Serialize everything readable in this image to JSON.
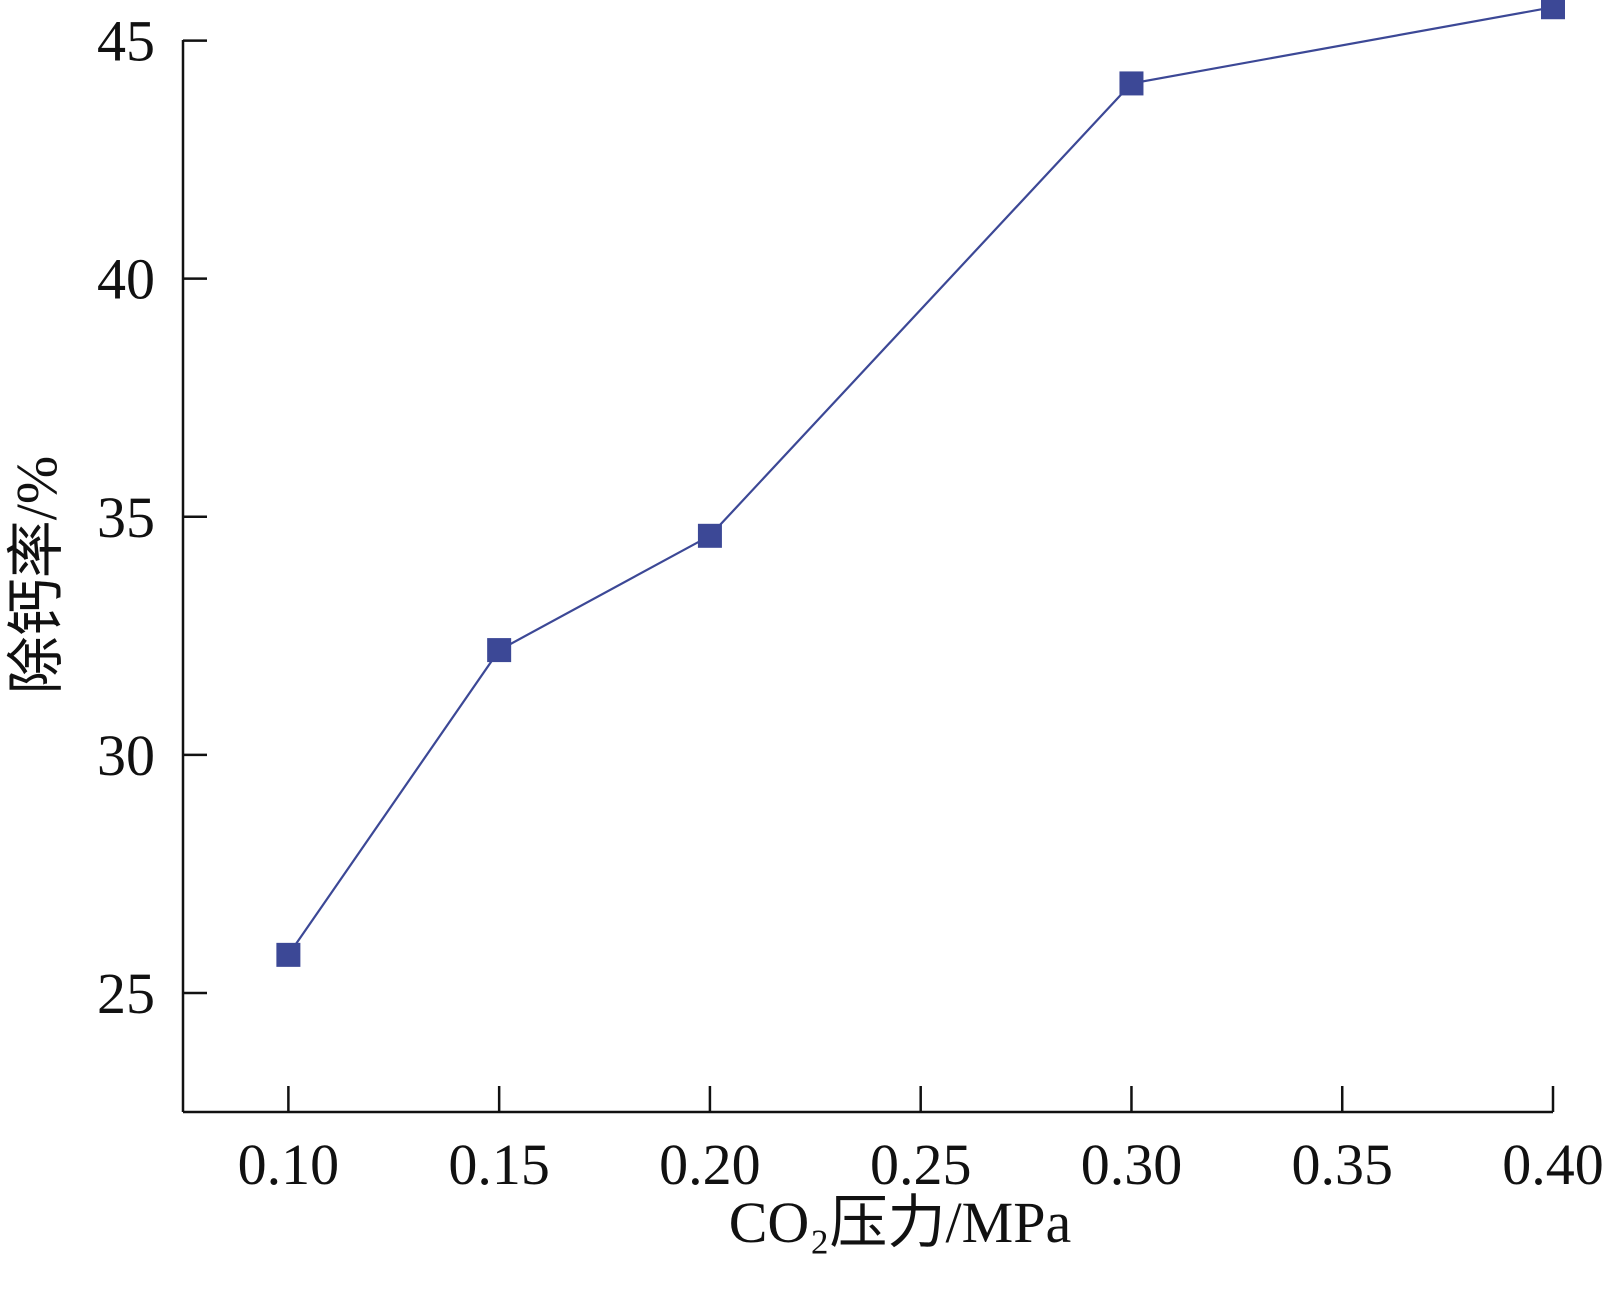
{
  "chart_data": {
    "type": "line",
    "title": "",
    "xlabel": "CO₂压力/MPa",
    "ylabel": "除钙率/%",
    "x_tick_labels": [
      "0.10",
      "0.15",
      "0.20",
      "0.25",
      "0.30",
      "0.35",
      "0.40"
    ],
    "y_tick_labels": [
      "25",
      "30",
      "35",
      "40",
      "45"
    ],
    "xlim": [
      0.075,
      0.4
    ],
    "ylim": [
      22.5,
      45.6
    ],
    "grid": false,
    "legend": "none",
    "series": [
      {
        "color": "#3c4896",
        "marker": "square",
        "points": [
          {
            "x": 0.1,
            "y": 25.8
          },
          {
            "x": 0.15,
            "y": 32.2
          },
          {
            "x": 0.2,
            "y": 34.6
          },
          {
            "x": 0.3,
            "y": 44.1
          },
          {
            "x": 0.4,
            "y": 45.7
          }
        ]
      }
    ]
  }
}
